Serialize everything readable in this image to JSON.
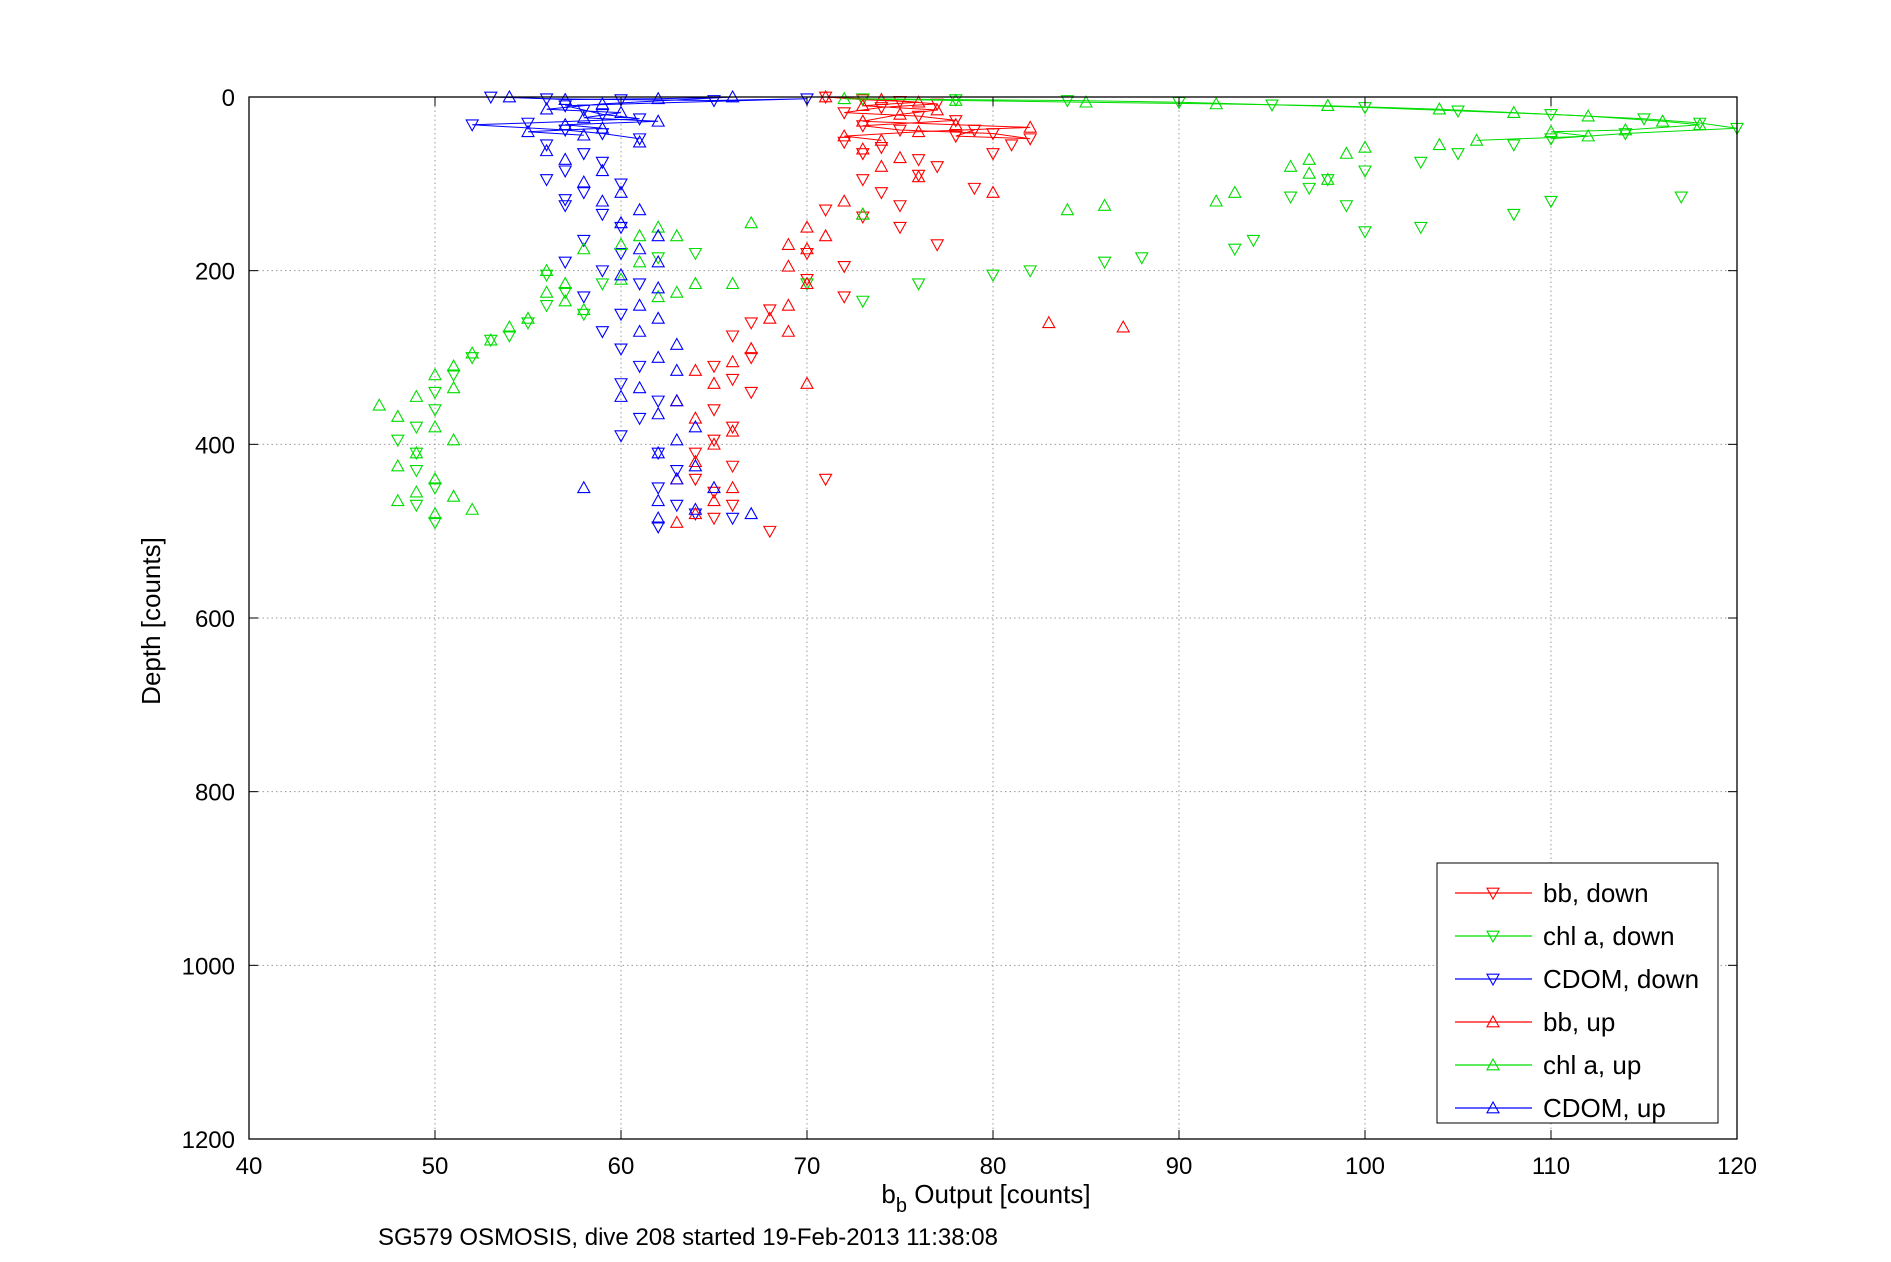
{
  "chart_data": {
    "type": "scatter",
    "xlabel_main": "b",
    "xlabel_sub": "b",
    "xlabel_rest": " Output [counts]",
    "ylabel": "Depth [counts]",
    "caption": "SG579 OSMOSIS, dive 208 started 19-Feb-2013 11:38:08",
    "xlim": [
      40,
      120
    ],
    "ylim": [
      0,
      1200
    ],
    "y_reversed": true,
    "grid": true,
    "legend_position": "bottom-right",
    "x_ticks": [
      "40",
      "50",
      "60",
      "70",
      "80",
      "90",
      "100",
      "110",
      "120"
    ],
    "y_ticks": [
      "0",
      "200",
      "400",
      "600",
      "800",
      "1000",
      "1200"
    ],
    "series": [
      {
        "name": "bb, down",
        "color": "#ff0000",
        "marker": "triangle-down",
        "connected": true,
        "points": [
          [
            71,
            0
          ],
          [
            73,
            3
          ],
          [
            75,
            5
          ],
          [
            77,
            8
          ],
          [
            74,
            12
          ],
          [
            72,
            18
          ],
          [
            76,
            22
          ],
          [
            78,
            27
          ],
          [
            73,
            33
          ],
          [
            75,
            38
          ],
          [
            80,
            42
          ],
          [
            82,
            48
          ],
          [
            72,
            52
          ],
          [
            74,
            58
          ],
          [
            73,
            65
          ],
          [
            76,
            72
          ],
          [
            77,
            80
          ],
          [
            73,
            95
          ],
          [
            74,
            110
          ],
          [
            75,
            125
          ],
          [
            71,
            130
          ],
          [
            73,
            138
          ],
          [
            75,
            150
          ],
          [
            77,
            170
          ],
          [
            70,
            180
          ],
          [
            72,
            195
          ],
          [
            70,
            210
          ],
          [
            72,
            230
          ],
          [
            68,
            245
          ],
          [
            67,
            260
          ],
          [
            66,
            275
          ],
          [
            67,
            300
          ],
          [
            65,
            310
          ],
          [
            66,
            325
          ],
          [
            67,
            340
          ],
          [
            65,
            360
          ],
          [
            66,
            380
          ],
          [
            65,
            395
          ],
          [
            64,
            410
          ],
          [
            66,
            425
          ],
          [
            64,
            440
          ],
          [
            71,
            440
          ],
          [
            65,
            455
          ],
          [
            66,
            470
          ],
          [
            65,
            485
          ],
          [
            68,
            500
          ],
          [
            79,
            105
          ],
          [
            76,
            90
          ],
          [
            80,
            65
          ],
          [
            81,
            55
          ],
          [
            78,
            45
          ],
          [
            79,
            38
          ]
        ]
      },
      {
        "name": "chl a, down",
        "color": "#00dd00",
        "marker": "triangle-down",
        "connected": true,
        "points": [
          [
            73,
            2
          ],
          [
            78,
            3
          ],
          [
            84,
            4
          ],
          [
            90,
            6
          ],
          [
            95,
            9
          ],
          [
            100,
            12
          ],
          [
            105,
            16
          ],
          [
            110,
            20
          ],
          [
            115,
            25
          ],
          [
            118,
            30
          ],
          [
            120,
            36
          ],
          [
            114,
            42
          ],
          [
            110,
            48
          ],
          [
            108,
            55
          ],
          [
            105,
            65
          ],
          [
            103,
            75
          ],
          [
            100,
            85
          ],
          [
            98,
            95
          ],
          [
            97,
            105
          ],
          [
            96,
            115
          ],
          [
            99,
            125
          ],
          [
            110,
            120
          ],
          [
            117,
            115
          ],
          [
            108,
            135
          ],
          [
            103,
            150
          ],
          [
            100,
            155
          ],
          [
            94,
            165
          ],
          [
            93,
            175
          ],
          [
            88,
            185
          ],
          [
            86,
            190
          ],
          [
            82,
            200
          ],
          [
            80,
            205
          ],
          [
            76,
            215
          ],
          [
            73,
            235
          ],
          [
            70,
            215
          ],
          [
            64,
            180
          ],
          [
            62,
            185
          ],
          [
            59,
            215
          ],
          [
            57,
            225
          ],
          [
            56,
            240
          ],
          [
            55,
            260
          ],
          [
            53,
            280
          ],
          [
            52,
            300
          ],
          [
            51,
            320
          ],
          [
            50,
            340
          ],
          [
            50,
            360
          ],
          [
            49,
            380
          ],
          [
            48,
            395
          ],
          [
            49,
            410
          ],
          [
            49,
            430
          ],
          [
            50,
            450
          ],
          [
            49,
            470
          ],
          [
            50,
            490
          ],
          [
            56,
            205
          ],
          [
            58,
            250
          ],
          [
            54,
            275
          ]
        ]
      },
      {
        "name": "CDOM, down",
        "color": "#0000ff",
        "marker": "triangle-down",
        "connected": true,
        "points": [
          [
            53,
            0
          ],
          [
            56,
            2
          ],
          [
            60,
            3
          ],
          [
            65,
            4
          ],
          [
            70,
            2
          ],
          [
            57,
            10
          ],
          [
            58,
            15
          ],
          [
            59,
            20
          ],
          [
            61,
            25
          ],
          [
            55,
            30
          ],
          [
            52,
            32
          ],
          [
            57,
            38
          ],
          [
            59,
            42
          ],
          [
            61,
            48
          ],
          [
            56,
            55
          ],
          [
            58,
            65
          ],
          [
            59,
            75
          ],
          [
            57,
            85
          ],
          [
            56,
            95
          ],
          [
            58,
            110
          ],
          [
            57,
            125
          ],
          [
            59,
            135
          ],
          [
            60,
            150
          ],
          [
            58,
            165
          ],
          [
            60,
            180
          ],
          [
            57,
            190
          ],
          [
            59,
            200
          ],
          [
            61,
            215
          ],
          [
            58,
            230
          ],
          [
            60,
            250
          ],
          [
            59,
            270
          ],
          [
            60,
            290
          ],
          [
            61,
            310
          ],
          [
            60,
            330
          ],
          [
            62,
            350
          ],
          [
            61,
            370
          ],
          [
            60,
            390
          ],
          [
            62,
            410
          ],
          [
            63,
            430
          ],
          [
            62,
            450
          ],
          [
            63,
            470
          ],
          [
            64,
            480
          ],
          [
            62,
            495
          ],
          [
            66,
            485
          ],
          [
            60,
            100
          ],
          [
            57,
            118
          ]
        ]
      },
      {
        "name": "bb, up",
        "color": "#ff0000",
        "marker": "triangle-up",
        "connected": true,
        "points": [
          [
            71,
            0
          ],
          [
            74,
            3
          ],
          [
            76,
            6
          ],
          [
            73,
            10
          ],
          [
            77,
            15
          ],
          [
            75,
            20
          ],
          [
            73,
            28
          ],
          [
            78,
            32
          ],
          [
            82,
            35
          ],
          [
            76,
            40
          ],
          [
            72,
            45
          ],
          [
            74,
            50
          ],
          [
            73,
            60
          ],
          [
            75,
            70
          ],
          [
            74,
            80
          ],
          [
            76,
            92
          ],
          [
            72,
            120
          ],
          [
            73,
            135
          ],
          [
            71,
            160
          ],
          [
            70,
            175
          ],
          [
            69,
            195
          ],
          [
            70,
            215
          ],
          [
            69,
            240
          ],
          [
            68,
            255
          ],
          [
            69,
            270
          ],
          [
            67,
            290
          ],
          [
            66,
            305
          ],
          [
            64,
            315
          ],
          [
            65,
            330
          ],
          [
            63,
            350
          ],
          [
            64,
            370
          ],
          [
            66,
            385
          ],
          [
            65,
            400
          ],
          [
            64,
            420
          ],
          [
            63,
            440
          ],
          [
            66,
            450
          ],
          [
            65,
            465
          ],
          [
            64,
            480
          ],
          [
            63,
            490
          ],
          [
            80,
            110
          ],
          [
            83,
            260
          ],
          [
            87,
            265
          ],
          [
            70,
            150
          ],
          [
            69,
            170
          ],
          [
            70,
            330
          ]
        ]
      },
      {
        "name": "chl a, up",
        "color": "#00dd00",
        "marker": "triangle-up",
        "connected": true,
        "points": [
          [
            72,
            2
          ],
          [
            78,
            4
          ],
          [
            85,
            6
          ],
          [
            92,
            8
          ],
          [
            98,
            10
          ],
          [
            104,
            14
          ],
          [
            108,
            18
          ],
          [
            112,
            22
          ],
          [
            116,
            28
          ],
          [
            118,
            32
          ],
          [
            114,
            38
          ],
          [
            110,
            40
          ],
          [
            112,
            45
          ],
          [
            106,
            50
          ],
          [
            104,
            55
          ],
          [
            100,
            58
          ],
          [
            99,
            65
          ],
          [
            97,
            72
          ],
          [
            96,
            80
          ],
          [
            97,
            88
          ],
          [
            98,
            95
          ],
          [
            93,
            110
          ],
          [
            92,
            120
          ],
          [
            86,
            125
          ],
          [
            84,
            130
          ],
          [
            73,
            135
          ],
          [
            67,
            145
          ],
          [
            62,
            150
          ],
          [
            61,
            160
          ],
          [
            63,
            160
          ],
          [
            60,
            170
          ],
          [
            58,
            175
          ],
          [
            61,
            190
          ],
          [
            56,
            200
          ],
          [
            57,
            215
          ],
          [
            56,
            225
          ],
          [
            57,
            235
          ],
          [
            58,
            245
          ],
          [
            55,
            255
          ],
          [
            54,
            265
          ],
          [
            53,
            280
          ],
          [
            52,
            295
          ],
          [
            51,
            310
          ],
          [
            50,
            320
          ],
          [
            51,
            335
          ],
          [
            49,
            345
          ],
          [
            47,
            355
          ],
          [
            48,
            368
          ],
          [
            50,
            380
          ],
          [
            51,
            395
          ],
          [
            49,
            410
          ],
          [
            48,
            425
          ],
          [
            50,
            440
          ],
          [
            49,
            455
          ],
          [
            48,
            465
          ],
          [
            50,
            480
          ],
          [
            52,
            475
          ],
          [
            51,
            460
          ],
          [
            63,
            225
          ],
          [
            60,
            210
          ],
          [
            64,
            215
          ],
          [
            66,
            215
          ],
          [
            62,
            230
          ]
        ]
      },
      {
        "name": "CDOM, up",
        "color": "#0000ff",
        "marker": "triangle-up",
        "connected": true,
        "points": [
          [
            54,
            0
          ],
          [
            57,
            3
          ],
          [
            62,
            2
          ],
          [
            66,
            0
          ],
          [
            59,
            8
          ],
          [
            56,
            14
          ],
          [
            60,
            18
          ],
          [
            58,
            24
          ],
          [
            62,
            28
          ],
          [
            57,
            32
          ],
          [
            59,
            36
          ],
          [
            55,
            40
          ],
          [
            58,
            44
          ],
          [
            61,
            52
          ],
          [
            56,
            62
          ],
          [
            57,
            72
          ],
          [
            59,
            85
          ],
          [
            58,
            98
          ],
          [
            60,
            110
          ],
          [
            59,
            120
          ],
          [
            61,
            130
          ],
          [
            60,
            145
          ],
          [
            62,
            160
          ],
          [
            61,
            175
          ],
          [
            62,
            190
          ],
          [
            60,
            205
          ],
          [
            62,
            220
          ],
          [
            61,
            240
          ],
          [
            62,
            255
          ],
          [
            61,
            270
          ],
          [
            63,
            285
          ],
          [
            62,
            300
          ],
          [
            63,
            315
          ],
          [
            61,
            335
          ],
          [
            63,
            350
          ],
          [
            62,
            365
          ],
          [
            64,
            380
          ],
          [
            63,
            395
          ],
          [
            62,
            410
          ],
          [
            64,
            425
          ],
          [
            63,
            440
          ],
          [
            65,
            450
          ],
          [
            62,
            465
          ],
          [
            64,
            475
          ],
          [
            62,
            485
          ],
          [
            67,
            480
          ],
          [
            58,
            450
          ],
          [
            60,
            345
          ]
        ]
      }
    ]
  }
}
